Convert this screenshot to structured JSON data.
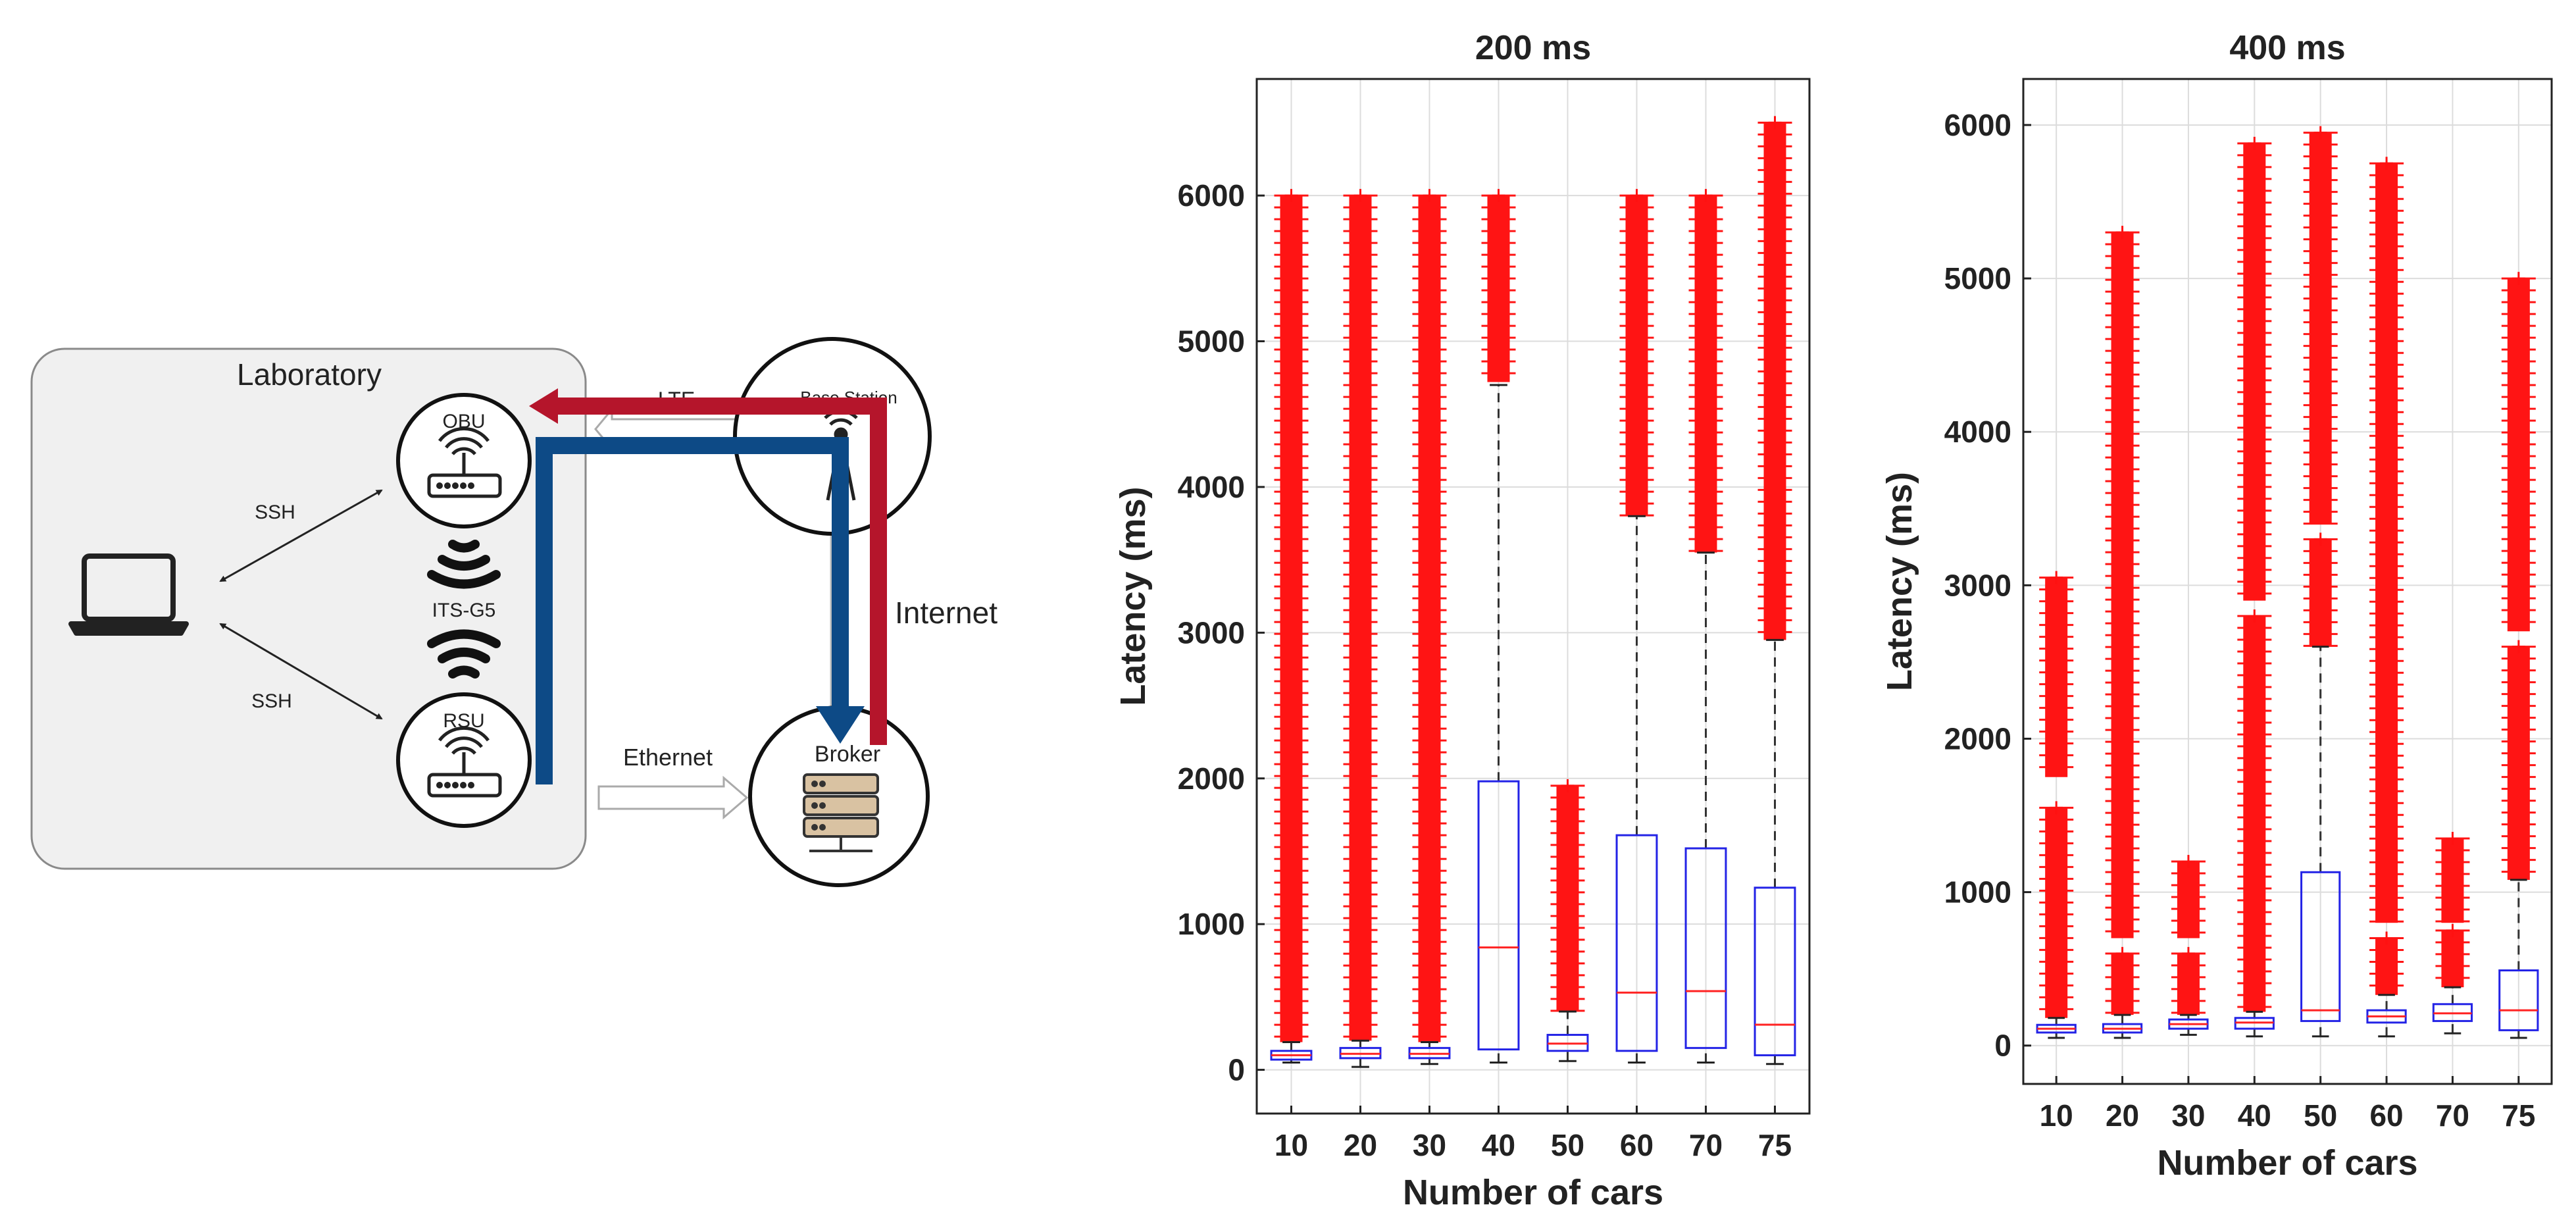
{
  "diagram": {
    "lab_label": "Laboratory",
    "obu_label": "OBU",
    "rsu_label": "RSU",
    "its_label": "ITS-G5",
    "ssh_top": "SSH",
    "ssh_bottom": "SSH",
    "lte_label": "LTE",
    "base_station_label": "Base Station",
    "internet_label": "Internet",
    "ethernet_label": "Ethernet",
    "broker_label": "Broker",
    "colors": {
      "red_path": "#b5152b",
      "blue_path": "#0d4a86",
      "lab_fill": "#f0f0f0"
    },
    "icons": [
      "laptop-icon",
      "router-icon",
      "wifi-signal-icon",
      "antenna-tower-icon",
      "server-rack-icon"
    ]
  },
  "chart_data": [
    {
      "type": "box",
      "title": "200 ms",
      "xlabel": "Number of cars",
      "ylabel": "Latency (ms)",
      "ylim": [
        -300,
        6800
      ],
      "yticks": [
        0,
        1000,
        2000,
        3000,
        4000,
        5000,
        6000
      ],
      "grid": true,
      "categories": [
        "10",
        "20",
        "30",
        "40",
        "50",
        "60",
        "70",
        "75"
      ],
      "boxes": [
        {
          "min": 50,
          "q1": 70,
          "median": 100,
          "q3": 130,
          "max": 190,
          "outliers": [
            [
              190,
              6000
            ]
          ]
        },
        {
          "min": 20,
          "q1": 80,
          "median": 110,
          "q3": 150,
          "max": 200,
          "outliers": [
            [
              200,
              6000
            ]
          ]
        },
        {
          "min": 40,
          "q1": 80,
          "median": 110,
          "q3": 150,
          "max": 190,
          "outliers": [
            [
              190,
              6000
            ]
          ]
        },
        {
          "min": 50,
          "q1": 140,
          "median": 840,
          "q3": 1980,
          "max": 4700,
          "outliers": [
            [
              4720,
              6000
            ]
          ]
        },
        {
          "min": 60,
          "q1": 130,
          "median": 180,
          "q3": 240,
          "max": 400,
          "outliers": [
            [
              400,
              1950
            ]
          ]
        },
        {
          "min": 50,
          "q1": 130,
          "median": 530,
          "q3": 1610,
          "max": 3800,
          "outliers": [
            [
              3800,
              6000
            ]
          ]
        },
        {
          "min": 50,
          "q1": 150,
          "median": 540,
          "q3": 1520,
          "max": 3550,
          "outliers": [
            [
              3550,
              6000
            ]
          ]
        },
        {
          "min": 40,
          "q1": 100,
          "median": 310,
          "q3": 1250,
          "max": 2950,
          "outliers": [
            [
              2950,
              6500
            ]
          ]
        }
      ]
    },
    {
      "type": "box",
      "title": "400 ms",
      "xlabel": "Number of cars",
      "ylabel": "Latency (ms)",
      "ylim": [
        -250,
        6300
      ],
      "yticks": [
        0,
        1000,
        2000,
        3000,
        4000,
        5000,
        6000
      ],
      "grid": true,
      "categories": [
        "10",
        "20",
        "30",
        "40",
        "50",
        "60",
        "70",
        "75"
      ],
      "boxes": [
        {
          "min": 50,
          "q1": 85,
          "median": 110,
          "q3": 135,
          "max": 180,
          "outliers": [
            [
              180,
              1550
            ],
            [
              1750,
              3050
            ]
          ]
        },
        {
          "min": 50,
          "q1": 85,
          "median": 110,
          "q3": 140,
          "max": 200,
          "outliers": [
            [
              200,
              600
            ],
            [
              700,
              5300
            ]
          ]
        },
        {
          "min": 70,
          "q1": 110,
          "median": 140,
          "q3": 170,
          "max": 200,
          "outliers": [
            [
              200,
              600
            ],
            [
              700,
              1200
            ]
          ]
        },
        {
          "min": 60,
          "q1": 110,
          "median": 150,
          "q3": 180,
          "max": 220,
          "outliers": [
            [
              220,
              2800
            ],
            [
              2900,
              5880
            ]
          ]
        },
        {
          "min": 60,
          "q1": 160,
          "median": 230,
          "q3": 1130,
          "max": 2600,
          "outliers": [
            [
              2600,
              3300
            ],
            [
              3400,
              5950
            ]
          ]
        },
        {
          "min": 60,
          "q1": 150,
          "median": 190,
          "q3": 230,
          "max": 330,
          "outliers": [
            [
              330,
              700
            ],
            [
              800,
              5750
            ]
          ]
        },
        {
          "min": 80,
          "q1": 160,
          "median": 210,
          "q3": 270,
          "max": 380,
          "outliers": [
            [
              380,
              750
            ],
            [
              800,
              1350
            ]
          ]
        },
        {
          "min": 50,
          "q1": 100,
          "median": 230,
          "q3": 490,
          "max": 1080,
          "outliers": [
            [
              1080,
              2600
            ],
            [
              2700,
              5000
            ]
          ]
        }
      ]
    }
  ]
}
